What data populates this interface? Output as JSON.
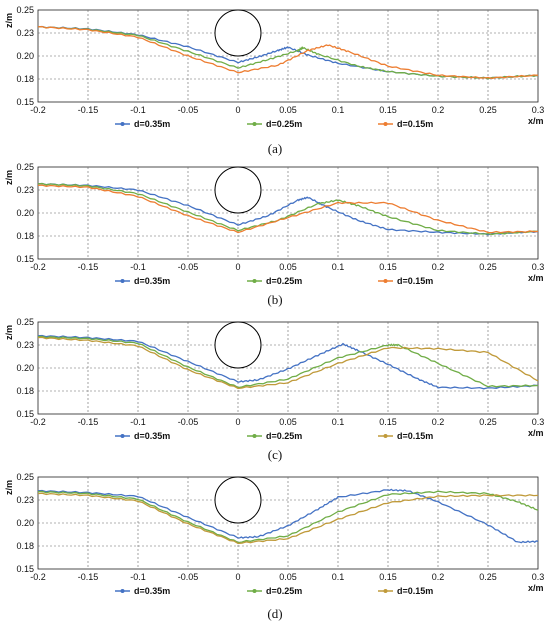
{
  "figure": {
    "captions": [
      "(a)",
      "(b)",
      "(c)",
      "(d)"
    ]
  },
  "colors": {
    "d035": "#4472c4",
    "d025": "#70ad47",
    "d015_a": "#ed7d31",
    "d015_b": "#c09a3a",
    "pipe": "#000000",
    "grid": "#666666"
  },
  "chart_data": [
    {
      "type": "line",
      "panel": "(a)",
      "xlabel": "x/m",
      "ylabel": "z/m",
      "xlim": [
        -0.2,
        0.3
      ],
      "ylim": [
        0.15,
        0.25
      ],
      "xticks": [
        "-0.2",
        "-0.15",
        "-0.1",
        "-0.05",
        "0",
        "0.05",
        "0.1",
        "0.15",
        "0.2",
        "0.25",
        "0.3"
      ],
      "yticks": [
        "0.15",
        "0.18",
        "0.20",
        "0.23",
        "0.25"
      ],
      "grid": true,
      "legend_position": "bottom",
      "pipe": {
        "cx": 0.0,
        "cz": 0.225,
        "r": 0.025
      },
      "series": [
        {
          "name": "d=0.35m",
          "color": "#4472c4",
          "points": [
            [
              -0.2,
              0.2317
            ],
            [
              -0.15,
              0.2295
            ],
            [
              -0.1,
              0.223
            ],
            [
              -0.05,
              0.21
            ],
            [
              0,
              0.193
            ],
            [
              0.02,
              0.199
            ],
            [
              0.04,
              0.206
            ],
            [
              0.05,
              0.2095
            ],
            [
              0.07,
              0.201
            ],
            [
              0.1,
              0.192
            ],
            [
              0.15,
              0.183
            ],
            [
              0.2,
              0.178
            ],
            [
              0.25,
              0.176
            ],
            [
              0.3,
              0.179
            ]
          ]
        },
        {
          "name": "d=0.25m",
          "color": "#70ad47",
          "points": [
            [
              -0.2,
              0.2317
            ],
            [
              -0.15,
              0.229
            ],
            [
              -0.1,
              0.2225
            ],
            [
              -0.05,
              0.205
            ],
            [
              0,
              0.187
            ],
            [
              0.03,
              0.196
            ],
            [
              0.06,
              0.206
            ],
            [
              0.065,
              0.209
            ],
            [
              0.08,
              0.202
            ],
            [
              0.12,
              0.189
            ],
            [
              0.15,
              0.183
            ],
            [
              0.2,
              0.178
            ],
            [
              0.25,
              0.176
            ],
            [
              0.3,
              0.179
            ]
          ]
        },
        {
          "name": "d=0.15m",
          "color": "#ed7d31",
          "points": [
            [
              -0.2,
              0.2317
            ],
            [
              -0.15,
              0.2285
            ],
            [
              -0.1,
              0.2205
            ],
            [
              -0.05,
              0.2
            ],
            [
              0,
              0.182
            ],
            [
              0.04,
              0.19
            ],
            [
              0.07,
              0.206
            ],
            [
              0.09,
              0.212
            ],
            [
              0.11,
              0.205
            ],
            [
              0.15,
              0.189
            ],
            [
              0.2,
              0.179
            ],
            [
              0.25,
              0.176
            ],
            [
              0.3,
              0.179
            ]
          ]
        }
      ]
    },
    {
      "type": "line",
      "panel": "(b)",
      "xlabel": "x/m",
      "ylabel": "z/m",
      "xlim": [
        -0.2,
        0.3
      ],
      "ylim": [
        0.15,
        0.25
      ],
      "xticks": [
        "-0.2",
        "-0.15",
        "-0.1",
        "-0.05",
        "0",
        "0.05",
        "0.1",
        "0.15",
        "0.2",
        "0.25",
        "0.3"
      ],
      "yticks": [
        "0.15",
        "0.18",
        "0.20",
        "0.23",
        "0.25"
      ],
      "grid": true,
      "legend_position": "bottom",
      "pipe": {
        "cx": 0.0,
        "cz": 0.225,
        "r": 0.025
      },
      "series": [
        {
          "name": "d=0.35m",
          "color": "#4472c4",
          "points": [
            [
              -0.2,
              0.2317
            ],
            [
              -0.15,
              0.23
            ],
            [
              -0.1,
              0.225
            ],
            [
              -0.05,
              0.208
            ],
            [
              0,
              0.187
            ],
            [
              0.03,
              0.197
            ],
            [
              0.06,
              0.214
            ],
            [
              0.07,
              0.217
            ],
            [
              0.09,
              0.206
            ],
            [
              0.12,
              0.192
            ],
            [
              0.15,
              0.182
            ],
            [
              0.2,
              0.179
            ],
            [
              0.25,
              0.177
            ],
            [
              0.3,
              0.18
            ]
          ]
        },
        {
          "name": "d=0.25m",
          "color": "#70ad47",
          "points": [
            [
              -0.2,
              0.2317
            ],
            [
              -0.15,
              0.2295
            ],
            [
              -0.1,
              0.221
            ],
            [
              -0.05,
              0.201
            ],
            [
              0,
              0.181
            ],
            [
              0.04,
              0.192
            ],
            [
              0.08,
              0.21
            ],
            [
              0.1,
              0.214
            ],
            [
              0.12,
              0.208
            ],
            [
              0.15,
              0.196
            ],
            [
              0.2,
              0.181
            ],
            [
              0.25,
              0.177
            ],
            [
              0.3,
              0.18
            ]
          ]
        },
        {
          "name": "d=0.15m",
          "color": "#ed7d31",
          "points": [
            [
              -0.2,
              0.23
            ],
            [
              -0.15,
              0.228
            ],
            [
              -0.1,
              0.218
            ],
            [
              -0.05,
              0.197
            ],
            [
              0,
              0.179
            ],
            [
              0.05,
              0.195
            ],
            [
              0.1,
              0.211
            ],
            [
              0.15,
              0.211
            ],
            [
              0.2,
              0.192
            ],
            [
              0.25,
              0.179
            ],
            [
              0.3,
              0.18
            ]
          ]
        }
      ]
    },
    {
      "type": "line",
      "panel": "(c)",
      "xlabel": "x/m",
      "ylabel": "z/m",
      "xlim": [
        -0.2,
        0.3
      ],
      "ylim": [
        0.15,
        0.25
      ],
      "xticks": [
        "-0.2",
        "-0.15",
        "-0.1",
        "-0.05",
        "0",
        "0.05",
        "0.1",
        "0.15",
        "0.2",
        "0.25",
        "0.3"
      ],
      "yticks": [
        "0.15",
        "0.18",
        "0.20",
        "0.23",
        "0.25"
      ],
      "grid": true,
      "legend_position": "bottom",
      "pipe": {
        "cx": 0.0,
        "cz": 0.225,
        "r": 0.025
      },
      "series": [
        {
          "name": "d=0.35m",
          "color": "#4472c4",
          "points": [
            [
              -0.2,
              0.235
            ],
            [
              -0.15,
              0.233
            ],
            [
              -0.1,
              0.229
            ],
            [
              -0.05,
              0.207
            ],
            [
              0,
              0.185
            ],
            [
              0.02,
              0.187
            ],
            [
              0.05,
              0.199
            ],
            [
              0.08,
              0.214
            ],
            [
              0.105,
              0.226
            ],
            [
              0.12,
              0.219
            ],
            [
              0.15,
              0.204
            ],
            [
              0.18,
              0.188
            ],
            [
              0.2,
              0.179
            ],
            [
              0.25,
              0.178
            ],
            [
              0.3,
              0.181
            ]
          ]
        },
        {
          "name": "d=0.25m",
          "color": "#70ad47",
          "points": [
            [
              -0.2,
              0.234
            ],
            [
              -0.15,
              0.232
            ],
            [
              -0.1,
              0.227
            ],
            [
              -0.05,
              0.201
            ],
            [
              0,
              0.179
            ],
            [
              0.05,
              0.188
            ],
            [
              0.1,
              0.211
            ],
            [
              0.15,
              0.225
            ],
            [
              0.16,
              0.225
            ],
            [
              0.2,
              0.205
            ],
            [
              0.25,
              0.18
            ],
            [
              0.3,
              0.181
            ]
          ]
        },
        {
          "name": "d=0.15m",
          "color": "#c09a3a",
          "points": [
            [
              -0.2,
              0.233
            ],
            [
              -0.15,
              0.23
            ],
            [
              -0.1,
              0.224
            ],
            [
              -0.05,
              0.198
            ],
            [
              0,
              0.178
            ],
            [
              0.05,
              0.184
            ],
            [
              0.1,
              0.205
            ],
            [
              0.15,
              0.222
            ],
            [
              0.2,
              0.221
            ],
            [
              0.25,
              0.217
            ],
            [
              0.3,
              0.186
            ]
          ]
        }
      ]
    },
    {
      "type": "line",
      "panel": "(d)",
      "xlabel": "x/m",
      "ylabel": "z/m",
      "xlim": [
        -0.2,
        0.3
      ],
      "ylim": [
        0.15,
        0.25
      ],
      "xticks": [
        "-0.2",
        "-0.15",
        "-0.1",
        "-0.05",
        "0",
        "0.05",
        "0.1",
        "0.15",
        "0.2",
        "0.25",
        "0.3"
      ],
      "yticks": [
        "0.15",
        "0.18",
        "0.20",
        "0.23",
        "0.25"
      ],
      "grid": true,
      "legend_position": "bottom",
      "pipe": {
        "cx": 0.0,
        "cz": 0.225,
        "r": 0.025
      },
      "series": [
        {
          "name": "d=0.35m",
          "color": "#4472c4",
          "points": [
            [
              -0.2,
              0.235
            ],
            [
              -0.15,
              0.233
            ],
            [
              -0.1,
              0.229
            ],
            [
              -0.05,
              0.206
            ],
            [
              0,
              0.184
            ],
            [
              0.02,
              0.185
            ],
            [
              0.05,
              0.197
            ],
            [
              0.08,
              0.215
            ],
            [
              0.1,
              0.228
            ],
            [
              0.15,
              0.236
            ],
            [
              0.17,
              0.235
            ],
            [
              0.2,
              0.223
            ],
            [
              0.25,
              0.198
            ],
            [
              0.28,
              0.179
            ],
            [
              0.3,
              0.18
            ]
          ]
        },
        {
          "name": "d=0.25m",
          "color": "#70ad47",
          "points": [
            [
              -0.2,
              0.234
            ],
            [
              -0.15,
              0.232
            ],
            [
              -0.1,
              0.226
            ],
            [
              -0.05,
              0.201
            ],
            [
              0,
              0.179
            ],
            [
              0.05,
              0.186
            ],
            [
              0.1,
              0.212
            ],
            [
              0.15,
              0.231
            ],
            [
              0.2,
              0.234
            ],
            [
              0.25,
              0.232
            ],
            [
              0.28,
              0.223
            ],
            [
              0.3,
              0.214
            ]
          ]
        },
        {
          "name": "d=0.15m",
          "color": "#c09a3a",
          "points": [
            [
              -0.2,
              0.232
            ],
            [
              -0.15,
              0.23
            ],
            [
              -0.1,
              0.224
            ],
            [
              -0.05,
              0.199
            ],
            [
              0,
              0.178
            ],
            [
              0.05,
              0.183
            ],
            [
              0.1,
              0.204
            ],
            [
              0.15,
              0.222
            ],
            [
              0.2,
              0.229
            ],
            [
              0.25,
              0.23
            ],
            [
              0.3,
              0.23
            ]
          ]
        }
      ]
    }
  ]
}
